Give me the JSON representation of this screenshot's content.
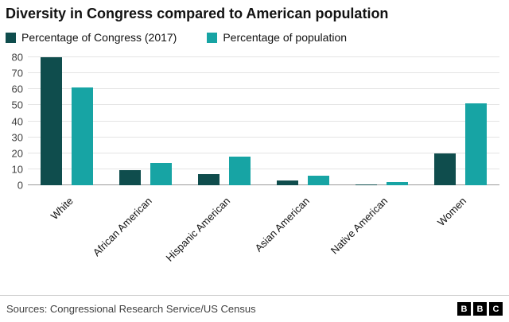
{
  "title": "Diversity in Congress compared to American population",
  "footer": {
    "sources": "Sources: Congressional Research Service/US Census",
    "logo_letters": [
      "B",
      "B",
      "C"
    ]
  },
  "chart_data": {
    "type": "bar",
    "title": "Diversity in Congress compared to American population",
    "categories": [
      "White",
      "African American",
      "Hispanic American",
      "Asian American",
      "Native American",
      "Women"
    ],
    "series": [
      {
        "name": "Percentage of Congress (2017)",
        "color": "#0f4d4d",
        "values": [
          80,
          9.5,
          7,
          3,
          0.5,
          20
        ]
      },
      {
        "name": "Percentage of population",
        "color": "#17a4a4",
        "values": [
          61,
          14,
          18,
          6,
          2,
          51
        ]
      }
    ],
    "xlabel": "",
    "ylabel": "",
    "ylim": [
      0,
      80
    ],
    "yticks": [
      0,
      10,
      20,
      30,
      40,
      50,
      60,
      70,
      80
    ],
    "grid": true,
    "legend_position": "top"
  }
}
